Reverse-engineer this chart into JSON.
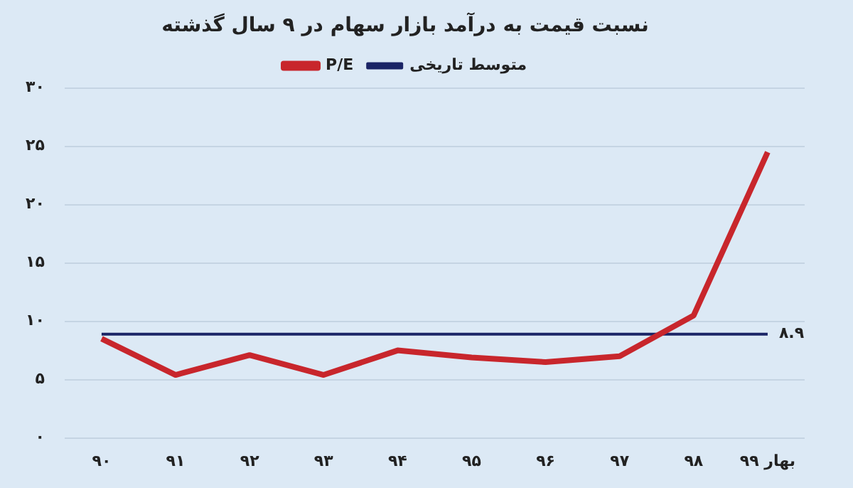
{
  "chart_data": {
    "type": "line",
    "title": "نسبت قیمت به درآمد بازار سهام در ۹ سال گذشته",
    "categories": [
      "۹۰",
      "۹۱",
      "۹۲",
      "۹۳",
      "۹۴",
      "۹۵",
      "۹۶",
      "۹۷",
      "۹۸",
      "بهار ۹۹"
    ],
    "series": [
      {
        "name": "P/E",
        "color": "#c8262c",
        "values": [
          8.5,
          5.4,
          7.1,
          5.4,
          7.5,
          6.9,
          6.5,
          7.0,
          10.5,
          24.5
        ]
      },
      {
        "name": "متوسط تاریخی",
        "color": "#1b2566",
        "values": [
          8.9,
          8.9,
          8.9,
          8.9,
          8.9,
          8.9,
          8.9,
          8.9,
          8.9,
          8.9
        ],
        "value_labels": [
          null,
          null,
          null,
          null,
          null,
          null,
          null,
          null,
          null,
          "۸.۹"
        ]
      }
    ],
    "ylim": [
      0,
      30
    ],
    "yticks": [
      {
        "value": 0,
        "label": "۰"
      },
      {
        "value": 5,
        "label": "۵"
      },
      {
        "value": 10,
        "label": "۱۰"
      },
      {
        "value": 15,
        "label": "۱۵"
      },
      {
        "value": 20,
        "label": "۲۰"
      },
      {
        "value": 25,
        "label": "۲۵"
      },
      {
        "value": 30,
        "label": "۳۰"
      }
    ],
    "grid": "y",
    "legend": "top",
    "marker": "none",
    "line_style": "solid"
  }
}
